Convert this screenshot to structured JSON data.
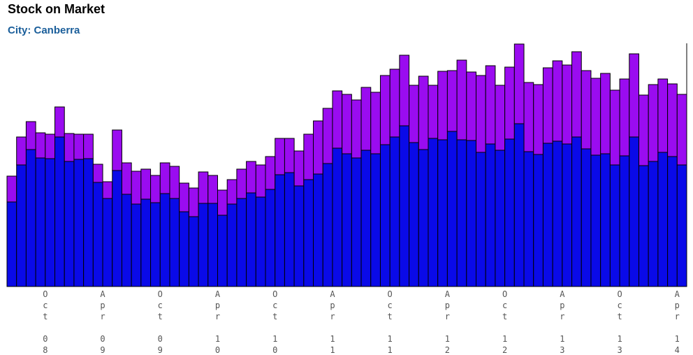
{
  "chart_data": {
    "type": "stacked-bar",
    "title": "Stock on Market",
    "subtitle": "City: Canberra",
    "categories": [
      null,
      null,
      null,
      null,
      "Oct 08",
      null,
      null,
      null,
      null,
      null,
      "Apr 09",
      null,
      null,
      null,
      null,
      null,
      "Oct 09",
      null,
      null,
      null,
      null,
      null,
      "Apr 10",
      null,
      null,
      null,
      null,
      null,
      "Oct 10",
      null,
      null,
      null,
      null,
      null,
      "Apr 11",
      null,
      null,
      null,
      null,
      null,
      "Oct 11",
      null,
      null,
      null,
      null,
      null,
      "Apr 12",
      null,
      null,
      null,
      null,
      null,
      "Oct 12",
      null,
      null,
      null,
      null,
      null,
      "Apr 13",
      null,
      null,
      null,
      null,
      null,
      "Oct 13",
      null,
      null,
      null,
      null,
      null,
      "Apr 14"
    ],
    "series": [
      {
        "color": "#0a0ae8",
        "values": [
          121,
          174,
          196,
          184,
          183,
          214,
          179,
          182,
          183,
          149,
          126,
          166,
          132,
          118,
          125,
          120,
          133,
          126,
          107,
          100,
          119,
          119,
          102,
          118,
          126,
          134,
          128,
          139,
          160,
          163,
          144,
          153,
          161,
          176,
          198,
          190,
          184,
          195,
          190,
          203,
          214,
          230,
          206,
          196,
          212,
          210,
          222,
          210,
          209,
          192,
          204,
          195,
          211,
          233,
          193,
          189,
          205,
          208,
          204,
          214,
          197,
          188,
          190,
          174,
          187,
          214,
          173,
          179,
          192,
          186,
          174
        ]
      },
      {
        "color": "#9a0cf0",
        "values": [
          37,
          40,
          40,
          36,
          35,
          43,
          40,
          36,
          35,
          26,
          24,
          58,
          45,
          47,
          43,
          39,
          44,
          46,
          41,
          41,
          45,
          40,
          36,
          35,
          42,
          45,
          46,
          47,
          52,
          49,
          50,
          65,
          76,
          79,
          82,
          85,
          83,
          90,
          88,
          99,
          97,
          101,
          82,
          105,
          76,
          98,
          87,
          114,
          98,
          110,
          112,
          93,
          103,
          114,
          99,
          100,
          108,
          115,
          113,
          122,
          112,
          110,
          115,
          107,
          110,
          119,
          101,
          110,
          105,
          104,
          101
        ]
      }
    ],
    "ylim": [
      0,
      350
    ]
  }
}
